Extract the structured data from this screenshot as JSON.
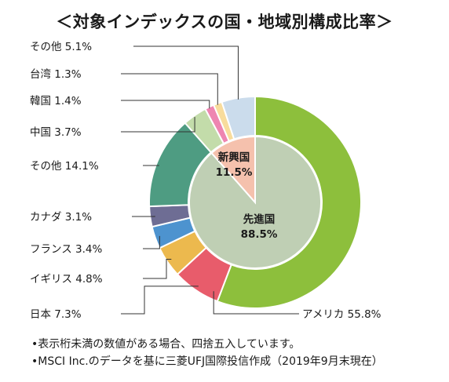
{
  "title": "＜対象インデックスの国・地域別構成比率＞",
  "chart_data": {
    "type": "pie",
    "subtype": "nested-donut",
    "inner": [
      {
        "name": "先進国",
        "value": 88.5,
        "label": "先進国\n88.5%",
        "color": "#bfcfb4"
      },
      {
        "name": "新興国",
        "value": 11.5,
        "label": "新興国\n11.5%",
        "color": "#f5c1ad"
      }
    ],
    "outer": [
      {
        "name": "アメリカ",
        "value": 55.8,
        "label": "アメリカ 55.8%",
        "color": "#8dbf3c"
      },
      {
        "name": "日本",
        "value": 7.3,
        "label": "日本 7.3%",
        "color": "#e85c6b"
      },
      {
        "name": "イギリス",
        "value": 4.8,
        "label": "イギリス 4.8%",
        "color": "#ecb94e"
      },
      {
        "name": "フランス",
        "value": 3.4,
        "label": "フランス 3.4%",
        "color": "#4d93cf"
      },
      {
        "name": "カナダ",
        "value": 3.1,
        "label": "カナダ 3.1%",
        "color": "#6e6d94"
      },
      {
        "name": "その他",
        "value": 14.1,
        "label": "その他 14.1%",
        "color": "#4e9c82"
      },
      {
        "name": "中国",
        "value": 3.7,
        "label": "中国 3.7%",
        "color": "#c3dcaa"
      },
      {
        "name": "韓国",
        "value": 1.4,
        "label": "韓国 1.4%",
        "color": "#ee85b1"
      },
      {
        "name": "台湾",
        "value": 1.3,
        "label": "台湾 1.3%",
        "color": "#f8dc9c"
      },
      {
        "name": "その他",
        "value": 5.1,
        "label": "その他 5.1%",
        "color": "#cbdcec"
      }
    ]
  },
  "notes": [
    "•表示桁未満の数値がある場合、四捨五入しています。",
    "•MSCI Inc.のデータを基に三菱UFJ国際投信作成（2019年9月末現在）"
  ]
}
